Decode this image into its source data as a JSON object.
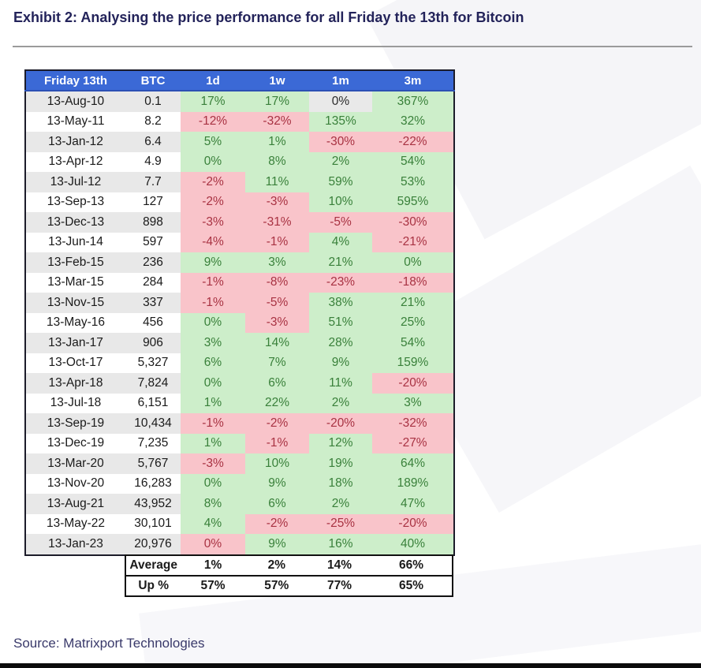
{
  "title": "Exhibit 2: Analysing the price performance for all Friday the 13th for Bitcoin",
  "source": "Source: Matrixport Technologies",
  "chart_data": {
    "type": "table",
    "title": "Exhibit 2: Analysing the price performance for all Friday the 13th for Bitcoin",
    "columns": [
      "Friday 13th",
      "BTC",
      "1d",
      "1w",
      "1m",
      "3m"
    ],
    "rows": [
      {
        "date": "13-Aug-10",
        "btc": "0.1",
        "perf": [
          {
            "v": "17%",
            "s": "pos"
          },
          {
            "v": "17%",
            "s": "pos"
          },
          {
            "v": "0%",
            "s": "neutral"
          },
          {
            "v": "367%",
            "s": "pos"
          }
        ]
      },
      {
        "date": "13-May-11",
        "btc": "8.2",
        "perf": [
          {
            "v": "-12%",
            "s": "neg"
          },
          {
            "v": "-32%",
            "s": "neg"
          },
          {
            "v": "135%",
            "s": "pos"
          },
          {
            "v": "32%",
            "s": "pos"
          }
        ]
      },
      {
        "date": "13-Jan-12",
        "btc": "6.4",
        "perf": [
          {
            "v": "5%",
            "s": "pos"
          },
          {
            "v": "1%",
            "s": "pos"
          },
          {
            "v": "-30%",
            "s": "neg"
          },
          {
            "v": "-22%",
            "s": "neg"
          }
        ]
      },
      {
        "date": "13-Apr-12",
        "btc": "4.9",
        "perf": [
          {
            "v": "0%",
            "s": "pos"
          },
          {
            "v": "8%",
            "s": "pos"
          },
          {
            "v": "2%",
            "s": "pos"
          },
          {
            "v": "54%",
            "s": "pos"
          }
        ]
      },
      {
        "date": "13-Jul-12",
        "btc": "7.7",
        "perf": [
          {
            "v": "-2%",
            "s": "neg"
          },
          {
            "v": "11%",
            "s": "pos"
          },
          {
            "v": "59%",
            "s": "pos"
          },
          {
            "v": "53%",
            "s": "pos"
          }
        ]
      },
      {
        "date": "13-Sep-13",
        "btc": "127",
        "perf": [
          {
            "v": "-2%",
            "s": "neg"
          },
          {
            "v": "-3%",
            "s": "neg"
          },
          {
            "v": "10%",
            "s": "pos"
          },
          {
            "v": "595%",
            "s": "pos"
          }
        ]
      },
      {
        "date": "13-Dec-13",
        "btc": "898",
        "perf": [
          {
            "v": "-3%",
            "s": "neg"
          },
          {
            "v": "-31%",
            "s": "neg"
          },
          {
            "v": "-5%",
            "s": "neg"
          },
          {
            "v": "-30%",
            "s": "neg"
          }
        ]
      },
      {
        "date": "13-Jun-14",
        "btc": "597",
        "perf": [
          {
            "v": "-4%",
            "s": "neg"
          },
          {
            "v": "-1%",
            "s": "neg"
          },
          {
            "v": "4%",
            "s": "pos"
          },
          {
            "v": "-21%",
            "s": "neg"
          }
        ]
      },
      {
        "date": "13-Feb-15",
        "btc": "236",
        "perf": [
          {
            "v": "9%",
            "s": "pos"
          },
          {
            "v": "3%",
            "s": "pos"
          },
          {
            "v": "21%",
            "s": "pos"
          },
          {
            "v": "0%",
            "s": "pos"
          }
        ]
      },
      {
        "date": "13-Mar-15",
        "btc": "284",
        "perf": [
          {
            "v": "-1%",
            "s": "neg"
          },
          {
            "v": "-8%",
            "s": "neg"
          },
          {
            "v": "-23%",
            "s": "neg"
          },
          {
            "v": "-18%",
            "s": "neg"
          }
        ]
      },
      {
        "date": "13-Nov-15",
        "btc": "337",
        "perf": [
          {
            "v": "-1%",
            "s": "neg"
          },
          {
            "v": "-5%",
            "s": "neg"
          },
          {
            "v": "38%",
            "s": "pos"
          },
          {
            "v": "21%",
            "s": "pos"
          }
        ]
      },
      {
        "date": "13-May-16",
        "btc": "456",
        "perf": [
          {
            "v": "0%",
            "s": "pos"
          },
          {
            "v": "-3%",
            "s": "neg"
          },
          {
            "v": "51%",
            "s": "pos"
          },
          {
            "v": "25%",
            "s": "pos"
          }
        ]
      },
      {
        "date": "13-Jan-17",
        "btc": "906",
        "perf": [
          {
            "v": "3%",
            "s": "pos"
          },
          {
            "v": "14%",
            "s": "pos"
          },
          {
            "v": "28%",
            "s": "pos"
          },
          {
            "v": "54%",
            "s": "pos"
          }
        ]
      },
      {
        "date": "13-Oct-17",
        "btc": "5,327",
        "perf": [
          {
            "v": "6%",
            "s": "pos"
          },
          {
            "v": "7%",
            "s": "pos"
          },
          {
            "v": "9%",
            "s": "pos"
          },
          {
            "v": "159%",
            "s": "pos"
          }
        ]
      },
      {
        "date": "13-Apr-18",
        "btc": "7,824",
        "perf": [
          {
            "v": "0%",
            "s": "pos"
          },
          {
            "v": "6%",
            "s": "pos"
          },
          {
            "v": "11%",
            "s": "pos"
          },
          {
            "v": "-20%",
            "s": "neg"
          }
        ]
      },
      {
        "date": "13-Jul-18",
        "btc": "6,151",
        "perf": [
          {
            "v": "1%",
            "s": "pos"
          },
          {
            "v": "22%",
            "s": "pos"
          },
          {
            "v": "2%",
            "s": "pos"
          },
          {
            "v": "3%",
            "s": "pos"
          }
        ]
      },
      {
        "date": "13-Sep-19",
        "btc": "10,434",
        "perf": [
          {
            "v": "-1%",
            "s": "neg"
          },
          {
            "v": "-2%",
            "s": "neg"
          },
          {
            "v": "-20%",
            "s": "neg"
          },
          {
            "v": "-32%",
            "s": "neg"
          }
        ]
      },
      {
        "date": "13-Dec-19",
        "btc": "7,235",
        "perf": [
          {
            "v": "1%",
            "s": "pos"
          },
          {
            "v": "-1%",
            "s": "neg"
          },
          {
            "v": "12%",
            "s": "pos"
          },
          {
            "v": "-27%",
            "s": "neg"
          }
        ]
      },
      {
        "date": "13-Mar-20",
        "btc": "5,767",
        "perf": [
          {
            "v": "-3%",
            "s": "neg"
          },
          {
            "v": "10%",
            "s": "pos"
          },
          {
            "v": "19%",
            "s": "pos"
          },
          {
            "v": "64%",
            "s": "pos"
          }
        ]
      },
      {
        "date": "13-Nov-20",
        "btc": "16,283",
        "perf": [
          {
            "v": "0%",
            "s": "pos"
          },
          {
            "v": "9%",
            "s": "pos"
          },
          {
            "v": "18%",
            "s": "pos"
          },
          {
            "v": "189%",
            "s": "pos"
          }
        ]
      },
      {
        "date": "13-Aug-21",
        "btc": "43,952",
        "perf": [
          {
            "v": "8%",
            "s": "pos"
          },
          {
            "v": "6%",
            "s": "pos"
          },
          {
            "v": "2%",
            "s": "pos"
          },
          {
            "v": "47%",
            "s": "pos"
          }
        ]
      },
      {
        "date": "13-May-22",
        "btc": "30,101",
        "perf": [
          {
            "v": "4%",
            "s": "pos"
          },
          {
            "v": "-2%",
            "s": "neg"
          },
          {
            "v": "-25%",
            "s": "neg"
          },
          {
            "v": "-20%",
            "s": "neg"
          }
        ]
      },
      {
        "date": "13-Jan-23",
        "btc": "20,976",
        "perf": [
          {
            "v": "0%",
            "s": "neg"
          },
          {
            "v": "9%",
            "s": "pos"
          },
          {
            "v": "16%",
            "s": "pos"
          },
          {
            "v": "40%",
            "s": "pos"
          }
        ]
      }
    ],
    "summary": [
      {
        "label": "Average",
        "values": [
          "1%",
          "2%",
          "14%",
          "66%"
        ]
      },
      {
        "label": "Up %",
        "values": [
          "57%",
          "57%",
          "77%",
          "65%"
        ]
      }
    ]
  },
  "colors": {
    "header_bg": "#3b69d6",
    "header_text": "#ffffff",
    "pos_bg": "#cdeeca",
    "pos_text": "#39803a",
    "neg_bg": "#f9c4ca",
    "neg_text": "#a83242",
    "neutral_bg": "#e9e9e9",
    "neutral_text": "#2b2b2b",
    "stripe_bg": "#e8e8e8",
    "title_text": "#23235a",
    "table_border": "#1c1c2a",
    "summary_border": "#111111"
  }
}
